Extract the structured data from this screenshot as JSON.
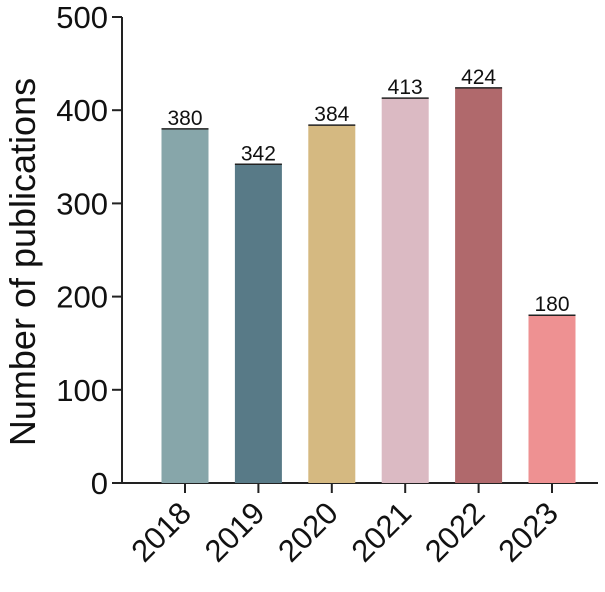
{
  "chart_data": {
    "type": "bar",
    "categories": [
      "2018",
      "2019",
      "2020",
      "2021",
      "2022",
      "2023"
    ],
    "values": [
      380,
      342,
      384,
      413,
      424,
      180
    ],
    "data_labels": [
      "380",
      "342",
      "384",
      "413",
      "424",
      "180"
    ],
    "colors": [
      "#87a6aa",
      "#587a87",
      "#d5b981",
      "#dbbac3",
      "#b0696c",
      "#ee9192"
    ],
    "title": "",
    "xlabel": "",
    "ylabel": "Number of publications",
    "ylim": [
      0,
      500
    ],
    "yticks": [
      0,
      100,
      200,
      300,
      400,
      500
    ],
    "ytick_labels": [
      "0",
      "100",
      "200",
      "300",
      "400",
      "500"
    ],
    "grid": false,
    "legend": "none"
  }
}
